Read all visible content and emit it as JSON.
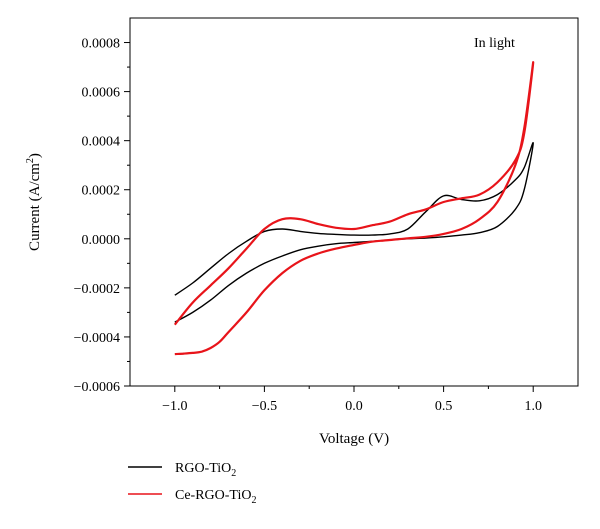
{
  "chart_data": {
    "type": "line",
    "annotation": "In light",
    "xlabel": "Voltage (V)",
    "ylabel_main": "Current (A/cm",
    "ylabel_sup": "2",
    "ylabel_end": ")",
    "xlim": [
      -1.25,
      1.25
    ],
    "ylim": [
      -0.0006,
      0.0009
    ],
    "x_ticks": [
      -1.0,
      -0.5,
      0.0,
      0.5,
      1.0
    ],
    "x_tick_labels": [
      "−1.0",
      "−0.5",
      "0.0",
      "0.5",
      "1.0"
    ],
    "y_ticks": [
      -0.0006,
      -0.0004,
      -0.0002,
      0.0,
      0.0002,
      0.0004,
      0.0006,
      0.0008
    ],
    "y_tick_labels": [
      "−0.0006",
      "−0.0004",
      "−0.0002",
      "0.0000",
      "0.0002",
      "0.0004",
      "0.0006",
      "0.0008"
    ],
    "grid": false,
    "legend_position": "bottom-left, below plot",
    "series": [
      {
        "name_main": "RGO-TiO",
        "name_sub": "2",
        "color": "#000000",
        "x": [
          -1.0,
          -0.9,
          -0.8,
          -0.7,
          -0.6,
          -0.5,
          -0.4,
          -0.3,
          -0.2,
          -0.1,
          0.0,
          0.1,
          0.2,
          0.3,
          0.4,
          0.5,
          0.6,
          0.7,
          0.8,
          0.9,
          0.95,
          1.0,
          0.95,
          0.9,
          0.8,
          0.7,
          0.6,
          0.5,
          0.4,
          0.3,
          0.2,
          0.1,
          0.0,
          -0.1,
          -0.2,
          -0.3,
          -0.4,
          -0.5,
          -0.6,
          -0.7,
          -0.8,
          -0.9,
          -1.0
        ],
        "y": [
          -0.00034,
          -0.0003,
          -0.00025,
          -0.00019,
          -0.00014,
          -0.0001,
          -7e-05,
          -4.5e-05,
          -3e-05,
          -2e-05,
          -1.5e-05,
          -1e-05,
          -5e-06,
          0.0,
          3e-06,
          8e-06,
          1.5e-05,
          2.5e-05,
          5e-05,
          0.00012,
          0.0002,
          0.00039,
          0.00029,
          0.00024,
          0.00018,
          0.000155,
          0.00016,
          0.000175,
          0.00011,
          4e-05,
          2e-05,
          1.5e-05,
          1.5e-05,
          1.8e-05,
          2.2e-05,
          3e-05,
          4e-05,
          3e-05,
          -1e-05,
          -6e-05,
          -0.00012,
          -0.00018,
          -0.00023
        ]
      },
      {
        "name_main": "Ce-RGO-TiO",
        "name_sub": "2",
        "color": "#e8141a",
        "x": [
          -1.0,
          -0.95,
          -0.9,
          -0.85,
          -0.8,
          -0.75,
          -0.7,
          -0.6,
          -0.5,
          -0.4,
          -0.3,
          -0.2,
          -0.1,
          0.0,
          0.1,
          0.2,
          0.3,
          0.4,
          0.5,
          0.6,
          0.7,
          0.8,
          0.9,
          0.95,
          1.0,
          0.95,
          0.9,
          0.8,
          0.7,
          0.6,
          0.5,
          0.4,
          0.3,
          0.2,
          0.1,
          0.0,
          -0.1,
          -0.2,
          -0.3,
          -0.4,
          -0.5,
          -0.6,
          -0.7,
          -0.8,
          -0.9,
          -1.0
        ],
        "y": [
          -0.00047,
          -0.000468,
          -0.000465,
          -0.00046,
          -0.000445,
          -0.00042,
          -0.00038,
          -0.0003,
          -0.00021,
          -0.00014,
          -9e-05,
          -6e-05,
          -4e-05,
          -2.5e-05,
          -1.2e-05,
          -5e-06,
          2e-06,
          8e-06,
          2e-05,
          4e-05,
          8e-05,
          0.00015,
          0.0003,
          0.00045,
          0.00072,
          0.00043,
          0.00032,
          0.00023,
          0.00018,
          0.000165,
          0.00015,
          0.00012,
          0.0001,
          7e-05,
          5.5e-05,
          4e-05,
          4.5e-05,
          6e-05,
          8e-05,
          8e-05,
          4e-05,
          -4e-05,
          -0.00012,
          -0.00019,
          -0.00026,
          -0.00035
        ]
      }
    ]
  }
}
